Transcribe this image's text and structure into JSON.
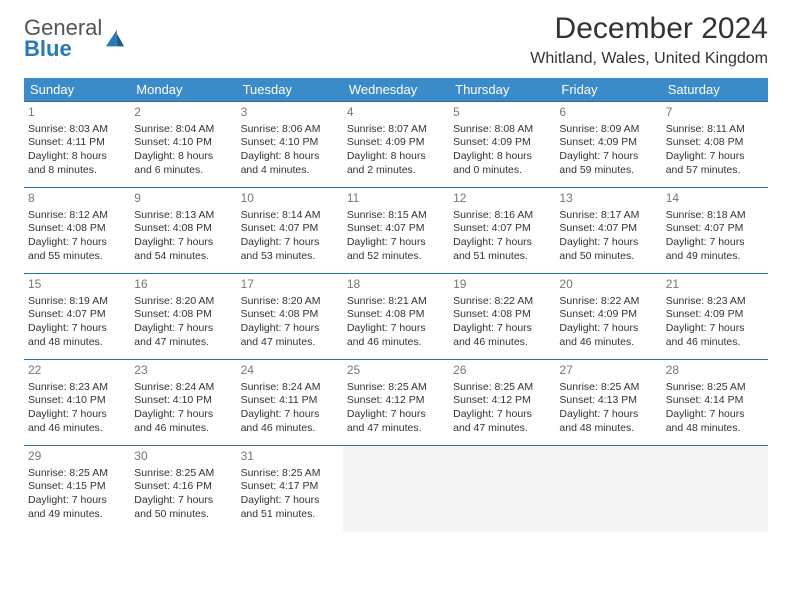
{
  "logo": {
    "text1": "General",
    "text2": "Blue"
  },
  "title": "December 2024",
  "location": "Whitland, Wales, United Kingdom",
  "colors": {
    "header_bg": "#3b8bc8",
    "header_text": "#ffffff",
    "row_border": "#2a6fa3",
    "daynum": "#777777",
    "text": "#333333",
    "empty_bg": "#f5f5f5",
    "logo_gray": "#555555",
    "logo_blue": "#2a7ab8"
  },
  "day_headers": [
    "Sunday",
    "Monday",
    "Tuesday",
    "Wednesday",
    "Thursday",
    "Friday",
    "Saturday"
  ],
  "weeks": [
    [
      {
        "n": "1",
        "sr": "8:03 AM",
        "ss": "4:11 PM",
        "dl": "8 hours and 8 minutes."
      },
      {
        "n": "2",
        "sr": "8:04 AM",
        "ss": "4:10 PM",
        "dl": "8 hours and 6 minutes."
      },
      {
        "n": "3",
        "sr": "8:06 AM",
        "ss": "4:10 PM",
        "dl": "8 hours and 4 minutes."
      },
      {
        "n": "4",
        "sr": "8:07 AM",
        "ss": "4:09 PM",
        "dl": "8 hours and 2 minutes."
      },
      {
        "n": "5",
        "sr": "8:08 AM",
        "ss": "4:09 PM",
        "dl": "8 hours and 0 minutes."
      },
      {
        "n": "6",
        "sr": "8:09 AM",
        "ss": "4:09 PM",
        "dl": "7 hours and 59 minutes."
      },
      {
        "n": "7",
        "sr": "8:11 AM",
        "ss": "4:08 PM",
        "dl": "7 hours and 57 minutes."
      }
    ],
    [
      {
        "n": "8",
        "sr": "8:12 AM",
        "ss": "4:08 PM",
        "dl": "7 hours and 55 minutes."
      },
      {
        "n": "9",
        "sr": "8:13 AM",
        "ss": "4:08 PM",
        "dl": "7 hours and 54 minutes."
      },
      {
        "n": "10",
        "sr": "8:14 AM",
        "ss": "4:07 PM",
        "dl": "7 hours and 53 minutes."
      },
      {
        "n": "11",
        "sr": "8:15 AM",
        "ss": "4:07 PM",
        "dl": "7 hours and 52 minutes."
      },
      {
        "n": "12",
        "sr": "8:16 AM",
        "ss": "4:07 PM",
        "dl": "7 hours and 51 minutes."
      },
      {
        "n": "13",
        "sr": "8:17 AM",
        "ss": "4:07 PM",
        "dl": "7 hours and 50 minutes."
      },
      {
        "n": "14",
        "sr": "8:18 AM",
        "ss": "4:07 PM",
        "dl": "7 hours and 49 minutes."
      }
    ],
    [
      {
        "n": "15",
        "sr": "8:19 AM",
        "ss": "4:07 PM",
        "dl": "7 hours and 48 minutes."
      },
      {
        "n": "16",
        "sr": "8:20 AM",
        "ss": "4:08 PM",
        "dl": "7 hours and 47 minutes."
      },
      {
        "n": "17",
        "sr": "8:20 AM",
        "ss": "4:08 PM",
        "dl": "7 hours and 47 minutes."
      },
      {
        "n": "18",
        "sr": "8:21 AM",
        "ss": "4:08 PM",
        "dl": "7 hours and 46 minutes."
      },
      {
        "n": "19",
        "sr": "8:22 AM",
        "ss": "4:08 PM",
        "dl": "7 hours and 46 minutes."
      },
      {
        "n": "20",
        "sr": "8:22 AM",
        "ss": "4:09 PM",
        "dl": "7 hours and 46 minutes."
      },
      {
        "n": "21",
        "sr": "8:23 AM",
        "ss": "4:09 PM",
        "dl": "7 hours and 46 minutes."
      }
    ],
    [
      {
        "n": "22",
        "sr": "8:23 AM",
        "ss": "4:10 PM",
        "dl": "7 hours and 46 minutes."
      },
      {
        "n": "23",
        "sr": "8:24 AM",
        "ss": "4:10 PM",
        "dl": "7 hours and 46 minutes."
      },
      {
        "n": "24",
        "sr": "8:24 AM",
        "ss": "4:11 PM",
        "dl": "7 hours and 46 minutes."
      },
      {
        "n": "25",
        "sr": "8:25 AM",
        "ss": "4:12 PM",
        "dl": "7 hours and 47 minutes."
      },
      {
        "n": "26",
        "sr": "8:25 AM",
        "ss": "4:12 PM",
        "dl": "7 hours and 47 minutes."
      },
      {
        "n": "27",
        "sr": "8:25 AM",
        "ss": "4:13 PM",
        "dl": "7 hours and 48 minutes."
      },
      {
        "n": "28",
        "sr": "8:25 AM",
        "ss": "4:14 PM",
        "dl": "7 hours and 48 minutes."
      }
    ],
    [
      {
        "n": "29",
        "sr": "8:25 AM",
        "ss": "4:15 PM",
        "dl": "7 hours and 49 minutes."
      },
      {
        "n": "30",
        "sr": "8:25 AM",
        "ss": "4:16 PM",
        "dl": "7 hours and 50 minutes."
      },
      {
        "n": "31",
        "sr": "8:25 AM",
        "ss": "4:17 PM",
        "dl": "7 hours and 51 minutes."
      },
      null,
      null,
      null,
      null
    ]
  ],
  "labels": {
    "sunrise": "Sunrise: ",
    "sunset": "Sunset: ",
    "daylight": "Daylight: "
  }
}
